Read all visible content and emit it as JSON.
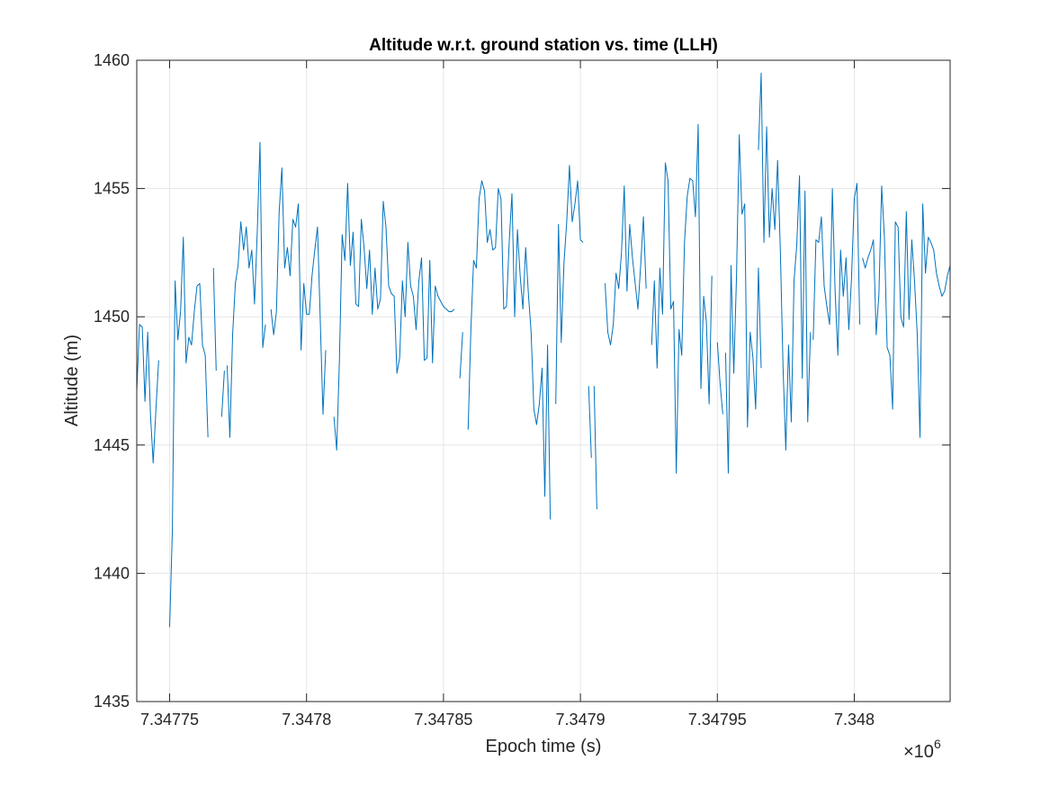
{
  "chart_data": {
    "type": "line",
    "title": "Altitude w.r.t. ground station vs. time (LLH)",
    "xlabel": "Epoch time (s)",
    "ylabel": "Altitude (m)",
    "x_multiplier": "×10",
    "x_exponent": "6",
    "xlim": [
      7347738,
      7348035
    ],
    "ylim": [
      1435,
      1460
    ],
    "grid": true,
    "line_color": "#0072BD",
    "xticks": [
      7347750,
      7347800,
      7347850,
      7347900,
      7347950,
      7348000
    ],
    "xtick_labels": [
      "7.34775",
      "7.3478",
      "7.34785",
      "7.3479",
      "7.34795",
      "7.348"
    ],
    "yticks": [
      1435,
      1440,
      1445,
      1450,
      1455,
      1460
    ],
    "ytick_labels": [
      "1435",
      "1440",
      "1445",
      "1450",
      "1455",
      "1460"
    ],
    "series": [
      {
        "segments": [
          {
            "x": [
              7347738,
              7347739,
              7347740,
              7347741,
              7347742,
              7347743,
              7347744,
              7347745,
              7347746
            ],
            "y": [
              1447.1,
              1449.7,
              1449.6,
              1446.7,
              1449.4,
              1446.2,
              1444.3,
              1446.4,
              1448.3
            ]
          },
          {
            "x": [
              7347750,
              7347751,
              7347752,
              7347753,
              7347754,
              7347755,
              7347756,
              7347757,
              7347758,
              7347759,
              7347760,
              7347761,
              7347762,
              7347763,
              7347764
            ],
            "y": [
              1437.9,
              1441.7,
              1451.4,
              1449.1,
              1450.2,
              1453.1,
              1448.2,
              1449.2,
              1448.9,
              1450.2,
              1451.2,
              1451.3,
              1448.9,
              1448.5,
              1445.3
            ]
          },
          {
            "x": [
              7347766,
              7347767
            ],
            "y": [
              1451.9,
              1447.9
            ]
          },
          {
            "x": [
              7347769,
              7347770
            ],
            "y": [
              1446.1,
              1447.9
            ]
          },
          {
            "x": [
              7347771,
              7347772,
              7347773,
              7347774,
              7347775,
              7347776,
              7347777,
              7347778,
              7347779,
              7347780,
              7347781,
              7347782,
              7347783,
              7347784,
              7347785
            ],
            "y": [
              1448.1,
              1445.3,
              1449.3,
              1451.3,
              1452.0,
              1453.7,
              1452.6,
              1453.5,
              1451.9,
              1452.6,
              1450.5,
              1453.3,
              1456.8,
              1448.8,
              1449.7
            ]
          },
          {
            "x": [
              7347787,
              7347788,
              7347789,
              7347790,
              7347791,
              7347792,
              7347793,
              7347794,
              7347795,
              7347796,
              7347797,
              7347798,
              7347799,
              7347800,
              7347801,
              7347802,
              7347803,
              7347804,
              7347805,
              7347806,
              7347807
            ],
            "y": [
              1450.3,
              1449.3,
              1450.2,
              1454.1,
              1455.8,
              1451.9,
              1452.7,
              1451.6,
              1453.8,
              1453.5,
              1454.4,
              1448.7,
              1451.3,
              1450.1,
              1450.1,
              1451.6,
              1452.6,
              1453.5,
              1449.9,
              1446.2,
              1448.7
            ]
          },
          {
            "x": [
              7347810,
              7347811,
              7347812,
              7347813,
              7347814,
              7347815,
              7347816,
              7347817,
              7347818,
              7347819,
              7347820,
              7347821,
              7347822,
              7347823,
              7347824,
              7347825,
              7347826,
              7347827,
              7347828,
              7347829,
              7347830,
              7347831,
              7347832,
              7347833,
              7347834,
              7347835,
              7347836,
              7347837,
              7347838,
              7347839,
              7347840,
              7347841,
              7347842,
              7347843,
              7347844,
              7347845,
              7347846,
              7347847,
              7347848,
              7347849,
              7347850,
              7347851,
              7347852,
              7347853,
              7347854
            ],
            "y": [
              1446.1,
              1444.8,
              1448.3,
              1453.2,
              1452.2,
              1455.2,
              1452.0,
              1453.3,
              1450.5,
              1450.4,
              1453.8,
              1452.7,
              1451.1,
              1452.6,
              1450.1,
              1451.9,
              1450.3,
              1450.7,
              1454.5,
              1453.5,
              1451.2,
              1450.9,
              1450.8,
              1447.8,
              1448.4,
              1451.4,
              1450.0,
              1452.9,
              1451.2,
              1450.8,
              1449.5,
              1451.4,
              1452.3,
              1448.3,
              1448.4,
              1452.2,
              1448.2,
              1451.2,
              1450.8,
              1450.6,
              1450.4,
              1450.3,
              1450.2,
              1450.2,
              1450.3
            ]
          },
          {
            "x": [
              7347856,
              7347857
            ],
            "y": [
              1447.6,
              1449.4
            ]
          },
          {
            "x": [
              7347859,
              7347860,
              7347861,
              7347862,
              7347863,
              7347864,
              7347865,
              7347866,
              7347867,
              7347868,
              7347869,
              7347870,
              7347871,
              7347872,
              7347873,
              7347874,
              7347875,
              7347876,
              7347877,
              7347878,
              7347879,
              7347880,
              7347881,
              7347882,
              7347883,
              7347884,
              7347885,
              7347886,
              7347887,
              7347888,
              7347889
            ],
            "y": [
              1445.6,
              1449.5,
              1452.2,
              1451.9,
              1454.6,
              1455.3,
              1454.9,
              1452.9,
              1453.4,
              1452.6,
              1452.7,
              1455.0,
              1454.6,
              1450.3,
              1450.4,
              1452.9,
              1454.8,
              1450.0,
              1453.4,
              1451.6,
              1450.3,
              1452.7,
              1450.9,
              1449.4,
              1446.4,
              1445.8,
              1446.6,
              1448.0,
              1443.0,
              1448.9,
              1442.1
            ]
          },
          {
            "x": [
              7347891,
              7347892,
              7347893,
              7347894,
              7347895,
              7347896,
              7347897,
              7347898,
              7347899,
              7347900,
              7347901
            ],
            "y": [
              1446.6,
              1453.6,
              1449.0,
              1452.1,
              1453.7,
              1455.9,
              1453.7,
              1454.4,
              1455.3,
              1453.0,
              1452.9
            ]
          },
          {
            "x": [
              7347903,
              7347904
            ],
            "y": [
              1447.3,
              1444.5
            ]
          },
          {
            "x": [
              7347905,
              7347906
            ],
            "y": [
              1447.3,
              1442.5
            ]
          },
          {
            "x": [
              7347909,
              7347910,
              7347911,
              7347912,
              7347913,
              7347914,
              7347915,
              7347916,
              7347917,
              7347918,
              7347919,
              7347920,
              7347921,
              7347922,
              7347923,
              7347924
            ],
            "y": [
              1451.3,
              1449.4,
              1448.9,
              1449.7,
              1451.7,
              1451.1,
              1452.5,
              1455.1,
              1451.0,
              1453.6,
              1452.3,
              1451.3,
              1450.3,
              1452.0,
              1453.9,
              1451.1
            ]
          },
          {
            "x": [
              7347926,
              7347927,
              7347928,
              7347929,
              7347930,
              7347931,
              7347932,
              7347933,
              7347934,
              7347935,
              7347936,
              7347937,
              7347938,
              7347939,
              7347940,
              7347941,
              7347942,
              7347943,
              7347944,
              7347945,
              7347946,
              7347947,
              7347948
            ],
            "y": [
              1448.9,
              1451.4,
              1448.0,
              1451.9,
              1450.1,
              1456.0,
              1455.3,
              1450.3,
              1450.6,
              1443.9,
              1449.5,
              1448.5,
              1452.9,
              1454.7,
              1455.4,
              1455.3,
              1453.9,
              1457.5,
              1447.2,
              1450.8,
              1449.8,
              1446.6,
              1451.6
            ]
          },
          {
            "x": [
              7347950,
              7347951,
              7347952
            ],
            "y": [
              1449.0,
              1447.4,
              1446.2
            ]
          },
          {
            "x": [
              7347953,
              7347954,
              7347955,
              7347956,
              7347957,
              7347958,
              7347959,
              7347960,
              7347961,
              7347962,
              7347963,
              7347964,
              7347965,
              7347966
            ],
            "y": [
              1448.6,
              1443.9,
              1452.0,
              1447.8,
              1451.6,
              1457.1,
              1454.0,
              1454.4,
              1445.7,
              1449.4,
              1448.4,
              1446.4,
              1451.9,
              1448.0
            ]
          },
          {
            "x": [
              7347965,
              7347966,
              7347967,
              7347968,
              7347969,
              7347970,
              7347971,
              7347972,
              7347973,
              7347974,
              7347975,
              7347976,
              7347977,
              7347978,
              7347979,
              7347980,
              7347981,
              7347982,
              7347983,
              7347984
            ],
            "y": [
              1456.5,
              1459.5,
              1452.9,
              1457.4,
              1453.1,
              1455.0,
              1453.4,
              1456.1,
              1452.6,
              1448.0,
              1444.8,
              1448.9,
              1445.9,
              1451.4,
              1452.8,
              1455.5,
              1447.6,
              1454.9,
              1445.9,
              1449.4
            ]
          },
          {
            "x": [
              7347985,
              7347986,
              7347987,
              7347988,
              7347989,
              7347990,
              7347991,
              7347992,
              7347993,
              7347994,
              7347995,
              7347996,
              7347997,
              7347998,
              7347999,
              7348000,
              7348001,
              7348002
            ],
            "y": [
              1449.1,
              1453.0,
              1452.9,
              1453.9,
              1451.2,
              1450.4,
              1449.7,
              1455.0,
              1451.0,
              1448.5,
              1452.6,
              1450.8,
              1452.3,
              1449.5,
              1451.5,
              1454.6,
              1455.2,
              1449.7
            ]
          },
          {
            "x": [
              7348003,
              7348004,
              7348005,
              7348006,
              7348007,
              7348008,
              7348009,
              7348010,
              7348011,
              7348012,
              7348013,
              7348014,
              7348015,
              7348016,
              7348017,
              7348018,
              7348019,
              7348020,
              7348021,
              7348022,
              7348023,
              7348024,
              7348025,
              7348026,
              7348027,
              7348028,
              7348029,
              7348030,
              7348031,
              7348032,
              7348033,
              7348034,
              7348035
            ],
            "y": [
              1452.3,
              1451.9,
              1452.3,
              1452.6,
              1453.0,
              1449.3,
              1450.9,
              1455.1,
              1453.1,
              1448.8,
              1448.5,
              1446.4,
              1453.7,
              1453.5,
              1450.0,
              1449.6,
              1454.1,
              1449.9,
              1453.0,
              1451.4,
              1449.3,
              1445.3,
              1454.4,
              1451.7,
              1453.1,
              1452.9,
              1452.6,
              1451.7,
              1451.2,
              1450.8,
              1451.0,
              1451.6,
              1452.0
            ]
          }
        ]
      }
    ]
  }
}
